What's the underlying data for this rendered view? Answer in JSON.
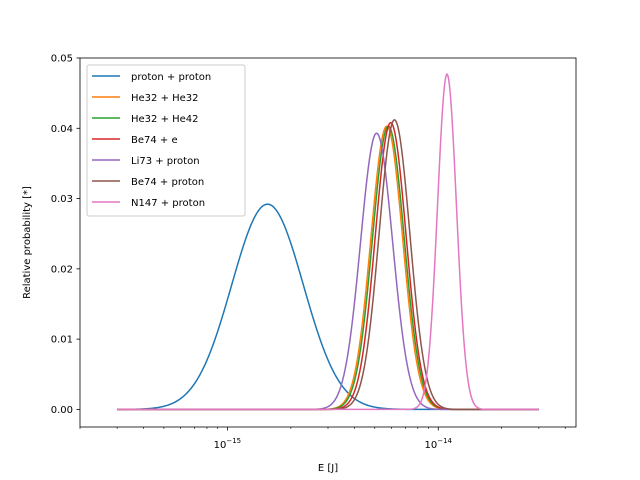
{
  "chart_data": {
    "type": "line",
    "xlabel": "E [J]",
    "ylabel": "Relative probability [*]",
    "xscale": "log",
    "xlim": [
      2e-16,
      4.5e-14
    ],
    "ylim": [
      -0.0025,
      0.05
    ],
    "x_range_plotted": [
      3e-16,
      3e-14
    ],
    "y_ticks": [
      0.0,
      0.01,
      0.02,
      0.03,
      0.04,
      0.05
    ],
    "y_tick_labels": [
      "0.00",
      "0.01",
      "0.02",
      "0.03",
      "0.04",
      "0.05"
    ],
    "x_major_ticks": [
      1e-15,
      1e-14
    ],
    "x_tick_labels": [
      {
        "base": "10",
        "exp": "−15"
      },
      {
        "base": "10",
        "exp": "−14"
      }
    ],
    "grid": false,
    "legend_position": "upper left",
    "series": [
      {
        "name": "proton + proton",
        "color": "#1f77b4",
        "peak_x": 1.55e-15,
        "peak_y": 0.0292,
        "width_decades": 0.17
      },
      {
        "name": "He32 + He32",
        "color": "#ff7f0e",
        "peak_x": 5.7e-15,
        "peak_y": 0.0403,
        "width_decades": 0.075
      },
      {
        "name": "He32 + He42",
        "color": "#2ca02c",
        "peak_x": 5.8e-15,
        "peak_y": 0.0403,
        "width_decades": 0.075
      },
      {
        "name": "Be74 + e",
        "color": "#d62728",
        "peak_x": 5.95e-15,
        "peak_y": 0.0408,
        "width_decades": 0.073
      },
      {
        "name": "Li73 + proton",
        "color": "#9467bd",
        "peak_x": 5.1e-15,
        "peak_y": 0.0393,
        "width_decades": 0.076
      },
      {
        "name": "Be74 + proton",
        "color": "#8c564b",
        "peak_x": 6.2e-15,
        "peak_y": 0.0412,
        "width_decades": 0.073
      },
      {
        "name": "N147 + proton",
        "color": "#e377c2",
        "peak_x": 1.1e-14,
        "peak_y": 0.0477,
        "width_decades": 0.045
      }
    ]
  }
}
